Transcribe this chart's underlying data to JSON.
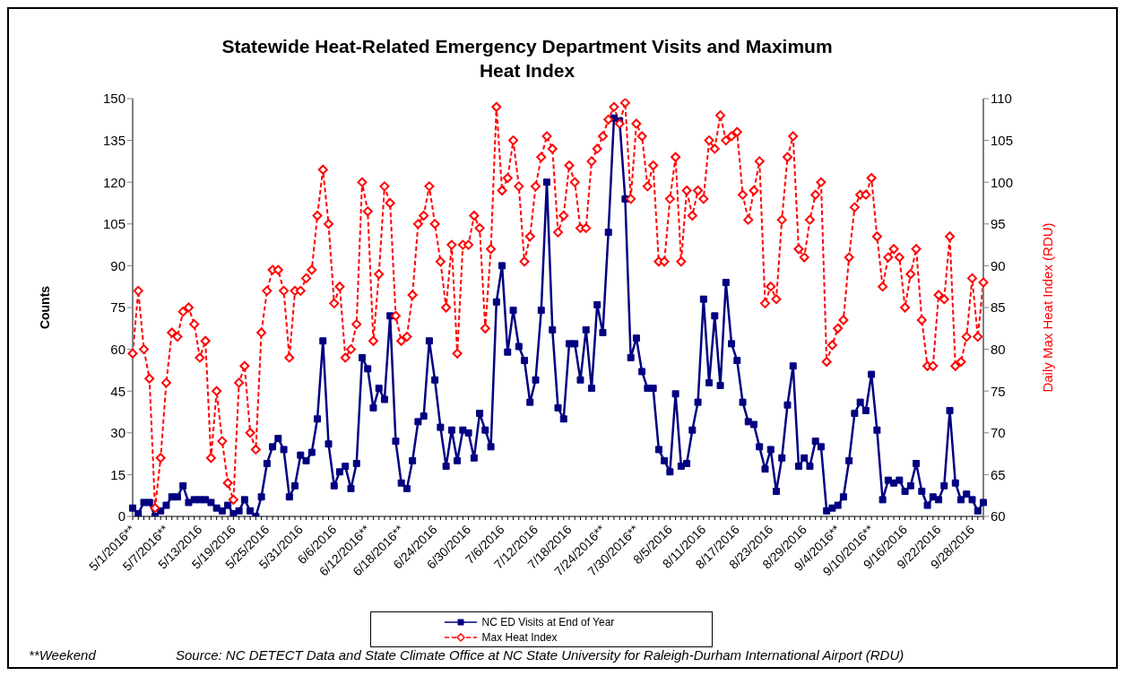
{
  "chart_data": {
    "type": "line",
    "title": "Statewide Heat-Related Emergency Department Visits and Maximum Heat Index",
    "ylabel": "Counts",
    "y2label": "Daily Max Heat Index  (RDU)",
    "categories": [
      "5/1/2016**",
      null,
      null,
      null,
      null,
      null,
      "5/7/2016**",
      null,
      null,
      null,
      null,
      null,
      "5/13/2016",
      null,
      null,
      null,
      null,
      null,
      "5/19/2016",
      null,
      null,
      null,
      null,
      null,
      "5/25/2016",
      null,
      null,
      null,
      null,
      null,
      "5/31/2016",
      null,
      null,
      null,
      null,
      null,
      "6/6/2016",
      null,
      null,
      null,
      null,
      null,
      "6/12/2016**",
      null,
      null,
      null,
      null,
      null,
      "6/18/2016**",
      null,
      null,
      null,
      null,
      null,
      "6/24/2016",
      null,
      null,
      null,
      null,
      null,
      "6/30/2016",
      null,
      null,
      null,
      null,
      null,
      "7/6/2016",
      null,
      null,
      null,
      null,
      null,
      "7/12/2016",
      null,
      null,
      null,
      null,
      null,
      "7/18/2016",
      null,
      null,
      null,
      null,
      null,
      "7/24/2016**",
      null,
      null,
      null,
      null,
      null,
      "7/30/2016**",
      null,
      null,
      null,
      null,
      null,
      "8/5/2016",
      null,
      null,
      null,
      null,
      null,
      "8/11/2016",
      null,
      null,
      null,
      null,
      null,
      "8/17/2016",
      null,
      null,
      null,
      null,
      null,
      "8/23/2016",
      null,
      null,
      null,
      null,
      null,
      "8/29/2016",
      null,
      null,
      null,
      null,
      null,
      "9/4/2016**",
      null,
      null,
      null,
      null,
      null,
      "9/10/2016**",
      null,
      null,
      null,
      null,
      null,
      "9/16/2016",
      null,
      null,
      null,
      null,
      null,
      "9/22/2016",
      null,
      null,
      null,
      null,
      null,
      "9/28/2016",
      null,
      null
    ],
    "series": [
      {
        "name": "NC ED Visits at End of Year",
        "color": "#000080",
        "marker": "square",
        "line_style": "solid",
        "values": [
          3,
          1,
          5,
          5,
          0,
          2,
          4,
          7,
          7,
          11,
          5,
          6,
          6,
          6,
          5,
          3,
          2,
          4,
          1,
          2,
          6,
          2,
          0,
          7,
          19,
          25,
          28,
          24,
          7,
          11,
          22,
          20,
          23,
          35,
          63,
          26,
          11,
          16,
          18,
          10,
          19,
          57,
          53,
          39,
          46,
          42,
          72,
          27,
          12,
          10,
          20,
          34,
          36,
          63,
          49,
          32,
          18,
          31,
          20,
          31,
          30,
          21,
          37,
          31,
          25,
          77,
          90,
          59,
          74,
          61,
          56,
          41,
          49,
          74,
          120,
          67,
          39,
          35,
          62,
          62,
          49,
          67,
          46,
          76,
          66,
          102,
          143,
          142,
          114,
          57,
          64,
          52,
          46,
          46,
          24,
          20,
          16,
          44,
          18,
          19,
          31,
          41,
          78,
          48,
          72,
          47,
          84,
          62,
          56,
          41,
          34,
          33,
          25,
          17,
          24,
          9,
          21,
          40,
          54,
          18,
          21,
          18,
          27,
          25,
          2,
          3,
          4,
          7,
          20,
          37,
          41,
          38,
          51,
          31,
          6,
          13,
          12,
          13,
          9,
          11,
          19,
          9,
          4,
          7,
          6,
          11,
          38,
          12,
          6,
          8,
          6,
          2,
          5
        ]
      },
      {
        "name": "Max Heat Index",
        "color": "#ff0000",
        "marker": "diamond",
        "line_style": "dashed",
        "axis": "y2",
        "values": [
          79.5,
          87,
          80,
          76.5,
          61,
          67,
          76,
          82,
          81.5,
          84.5,
          85,
          83,
          79,
          81,
          67,
          75,
          69,
          64,
          62,
          76,
          78,
          70,
          68,
          82,
          87,
          89.5,
          89.5,
          87,
          79,
          87,
          87,
          88.5,
          89.5,
          96,
          101.5,
          95,
          85.5,
          87.5,
          79,
          80,
          83,
          100,
          96.5,
          81,
          89,
          99.5,
          97.5,
          84,
          81,
          81.5,
          86.5,
          95,
          96,
          99.5,
          95,
          90.5,
          85,
          92.5,
          79.5,
          92.5,
          92.5,
          96,
          94.5,
          82.5,
          92,
          109,
          99,
          100.5,
          105,
          99.5,
          90.5,
          93.5,
          99.5,
          103,
          105.5,
          104,
          94,
          96,
          102,
          100,
          94.5,
          94.5,
          102.5,
          104,
          105.5,
          107.5,
          109,
          107,
          109.5,
          98,
          107,
          105.5,
          99.5,
          102,
          90.5,
          90.5,
          98,
          103,
          90.5,
          99,
          96,
          99,
          98,
          105,
          104,
          108,
          105,
          105.5,
          106,
          98.5,
          95.5,
          99,
          102.5,
          85.5,
          87.5,
          86,
          95.5,
          103,
          105.5,
          92,
          91,
          95.5,
          98.5,
          100,
          78.5,
          80.5,
          82.5,
          83.5,
          91,
          97,
          98.5,
          98.5,
          100.5,
          93.5,
          87.5,
          91,
          92,
          91,
          85,
          89,
          92,
          83.5,
          78,
          78,
          86.5,
          86,
          93.5,
          78,
          78.5,
          81.5,
          88.5,
          81.5,
          88
        ]
      }
    ],
    "ylim": [
      0,
      150
    ],
    "yticks": [
      0,
      15,
      30,
      45,
      60,
      75,
      90,
      105,
      120,
      135,
      150
    ],
    "y2lim": [
      60,
      110
    ],
    "y2ticks": [
      60,
      65,
      70,
      75,
      80,
      85,
      90,
      95,
      100,
      105,
      110
    ],
    "grid": false,
    "legend": "bottom",
    "annotations": [
      "**Weekend",
      "Source: NC DETECT Data and State Climate Office at NC State University for Raleigh-Durham International Airport (RDU)"
    ]
  }
}
